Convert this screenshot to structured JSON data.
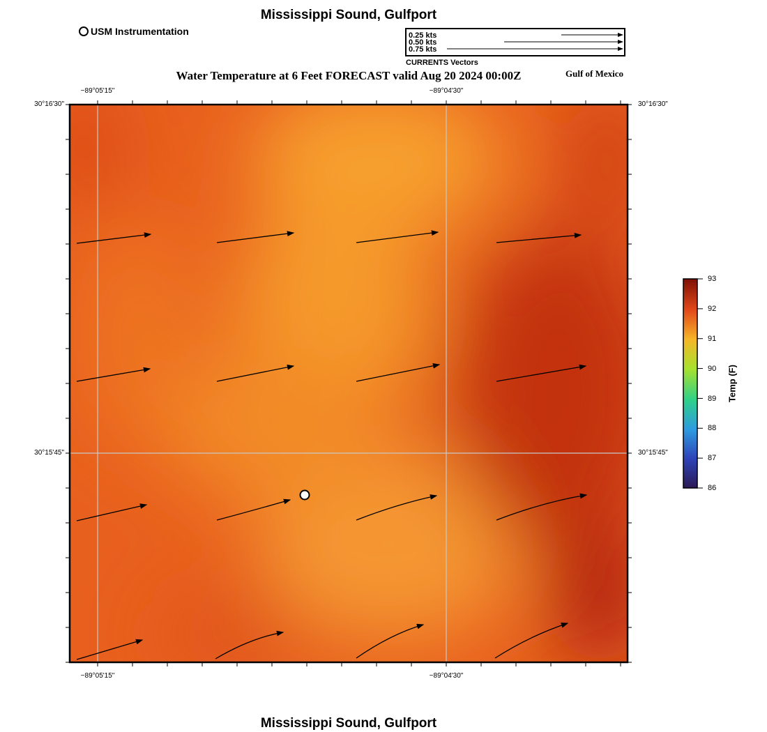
{
  "header": {
    "title": "Mississippi Sound, Gulfport",
    "map_title": "Water Temperature at 6 Feet FORECAST valid Aug 20 2024 00:00Z",
    "region": "Gulf of Mexico"
  },
  "footer": {
    "title": "Mississippi Sound, Gulfport"
  },
  "legend": {
    "station_label": "USM Instrumentation",
    "vector_key": [
      "0.25 kts",
      "0.50 kts",
      "0.75 kts"
    ],
    "vector_caption": "CURRENTS Vectors"
  },
  "axes": {
    "top_ticks": [
      "−89°05'15\"",
      "−89°04'30\""
    ],
    "bottom_ticks": [
      "−89°05'15\"",
      "−89°04'30\""
    ],
    "left_ticks": [
      "30°16'30\"",
      "30°15'45\""
    ],
    "right_ticks": [
      "30°16'30\"",
      "30°15'45\""
    ]
  },
  "colorbar": {
    "title": "Temp (F)",
    "ticks": [
      "93",
      "92",
      "91",
      "90",
      "89",
      "88",
      "87",
      "86"
    ],
    "min": 86,
    "max": 93
  },
  "colors": {
    "field_base": "#e8601e",
    "field_warm": "#f7a02e",
    "field_hot": "#bc2a0a",
    "station_fill": "#ffffff"
  }
}
